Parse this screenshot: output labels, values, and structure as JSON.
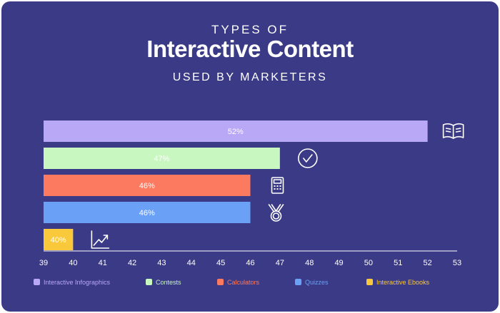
{
  "header": {
    "line1": "TYPES OF",
    "line2": "Interactive Content",
    "line3": "USED BY MARKETERS"
  },
  "chart_data": {
    "type": "bar",
    "orientation": "horizontal",
    "categories": [
      "Interactive Infographics",
      "Contests",
      "Calculators",
      "Quizzes",
      "Interactive Ebooks"
    ],
    "values": [
      52,
      47,
      46,
      46,
      40
    ],
    "value_labels": [
      "52%",
      "47%",
      "46%",
      "46%",
      "40%"
    ],
    "colors": [
      "#b9a8f5",
      "#c8f7c0",
      "#fb7a60",
      "#6aa0f5",
      "#f9c93b"
    ],
    "icons": [
      "book-icon",
      "checkmark-circle-icon",
      "calculator-icon",
      "medal-icon",
      "trending-up-icon"
    ],
    "xlim": [
      39,
      53
    ],
    "xticks": [
      39,
      40,
      41,
      42,
      43,
      44,
      45,
      46,
      47,
      48,
      49,
      50,
      51,
      52,
      53
    ],
    "grid": false,
    "legend_position": "bottom",
    "title": "Interactive Content",
    "xlabel": "",
    "ylabel": ""
  },
  "colors": {
    "background": "#3b3a86",
    "text": "#ffffff"
  }
}
